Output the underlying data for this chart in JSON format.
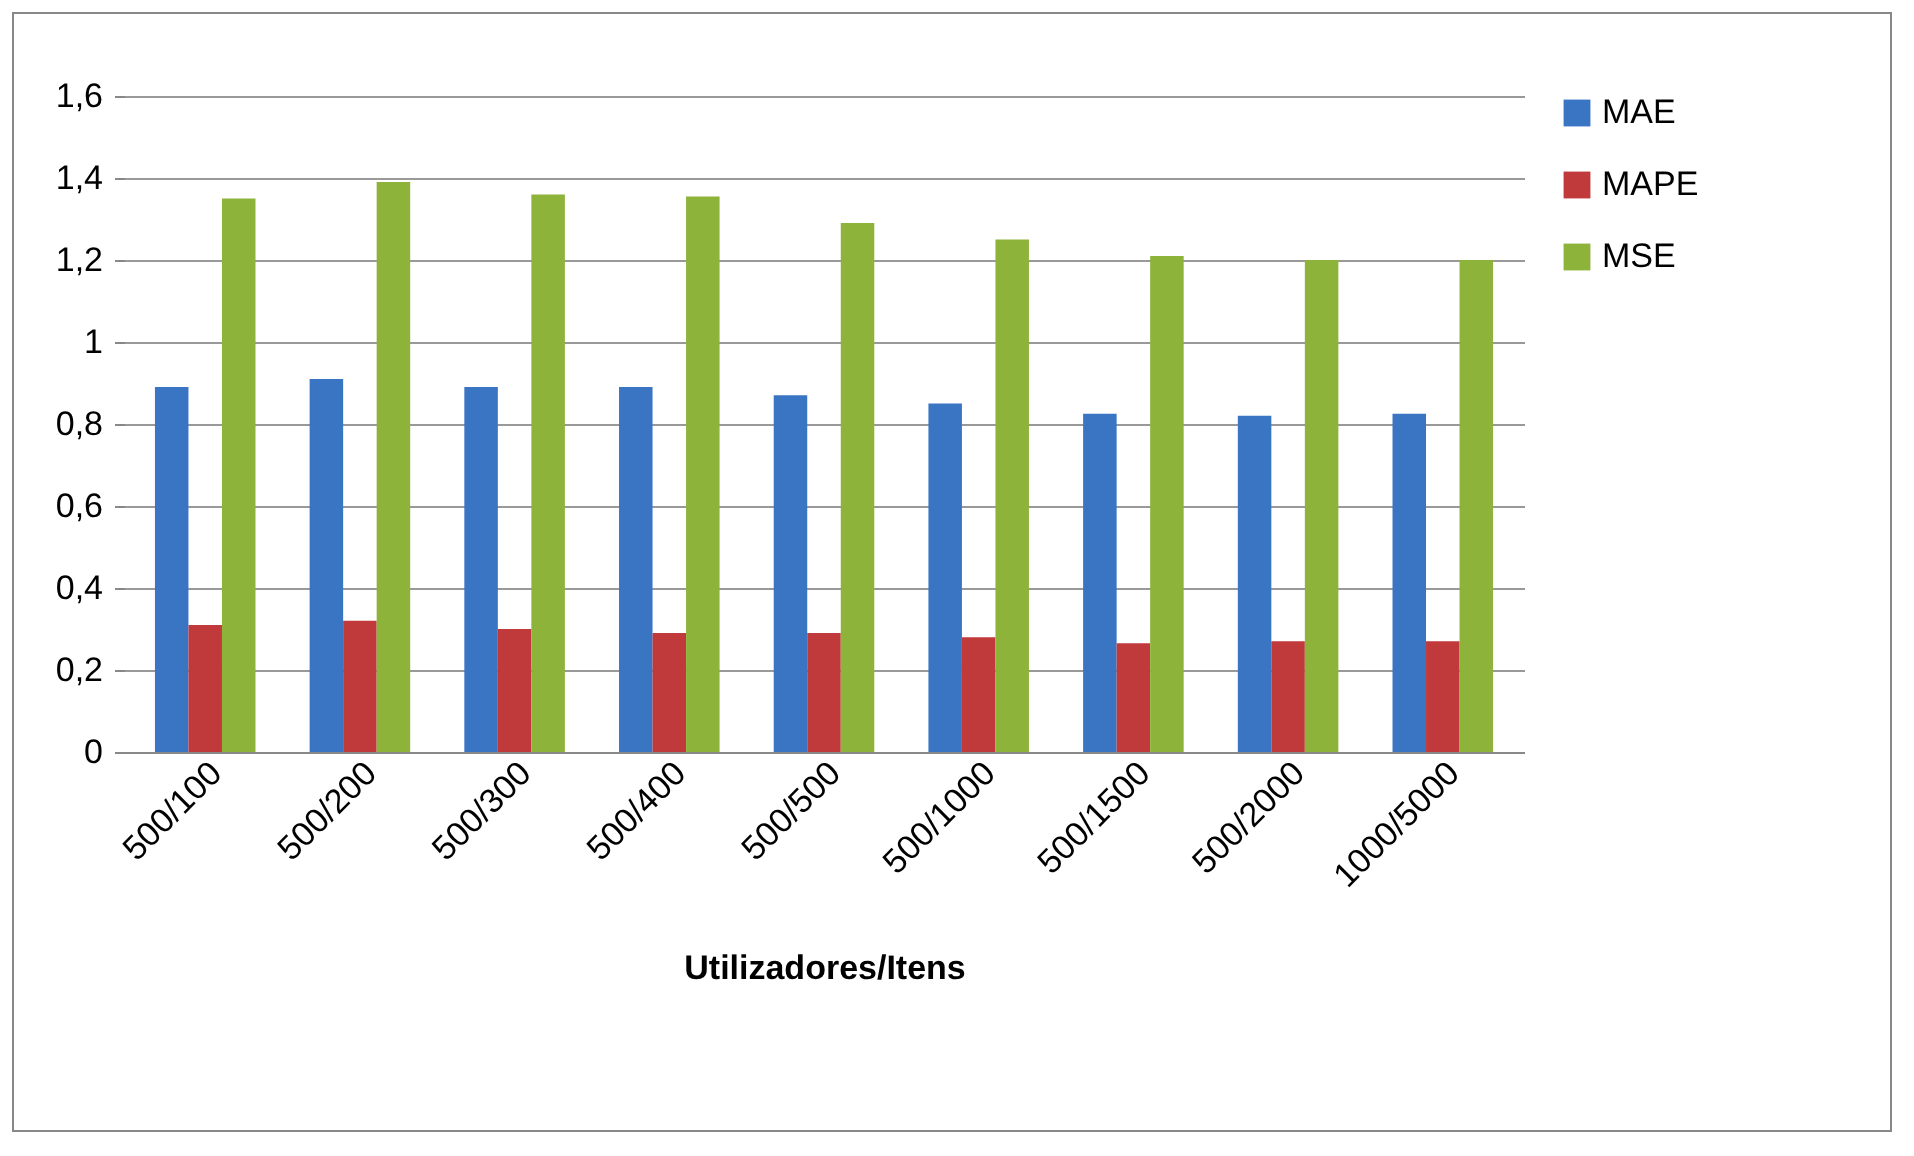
{
  "chart_data": {
    "type": "bar",
    "xlabel": "Utilizadores/Itens",
    "categories": [
      "500/100",
      "500/200",
      "500/300",
      "500/400",
      "500/500",
      "500/1000",
      "500/1500",
      "500/2000",
      "1000/5000"
    ],
    "series": [
      {
        "name": "MAE",
        "color": "#3a75c4",
        "values": [
          0.89,
          0.91,
          0.89,
          0.89,
          0.87,
          0.85,
          0.825,
          0.82,
          0.825
        ]
      },
      {
        "name": "MAPE",
        "color": "#c0393b",
        "values": [
          0.31,
          0.32,
          0.3,
          0.29,
          0.29,
          0.28,
          0.265,
          0.27,
          0.27
        ]
      },
      {
        "name": "MSE",
        "color": "#8db33a",
        "values": [
          1.35,
          1.39,
          1.36,
          1.355,
          1.29,
          1.25,
          1.21,
          1.2,
          1.2
        ]
      }
    ],
    "ylim": [
      0,
      1.6
    ],
    "yticks": [
      {
        "value": 0,
        "label": "0"
      },
      {
        "value": 0.2,
        "label": "0,2"
      },
      {
        "value": 0.4,
        "label": "0,4"
      },
      {
        "value": 0.6,
        "label": "0,6"
      },
      {
        "value": 0.8,
        "label": "0,8"
      },
      {
        "value": 1,
        "label": "1"
      },
      {
        "value": 1.2,
        "label": "1,2"
      },
      {
        "value": 1.4,
        "label": "1,4"
      },
      {
        "value": 1.6,
        "label": "1,6"
      }
    ],
    "grid": "y",
    "legend": "right"
  }
}
